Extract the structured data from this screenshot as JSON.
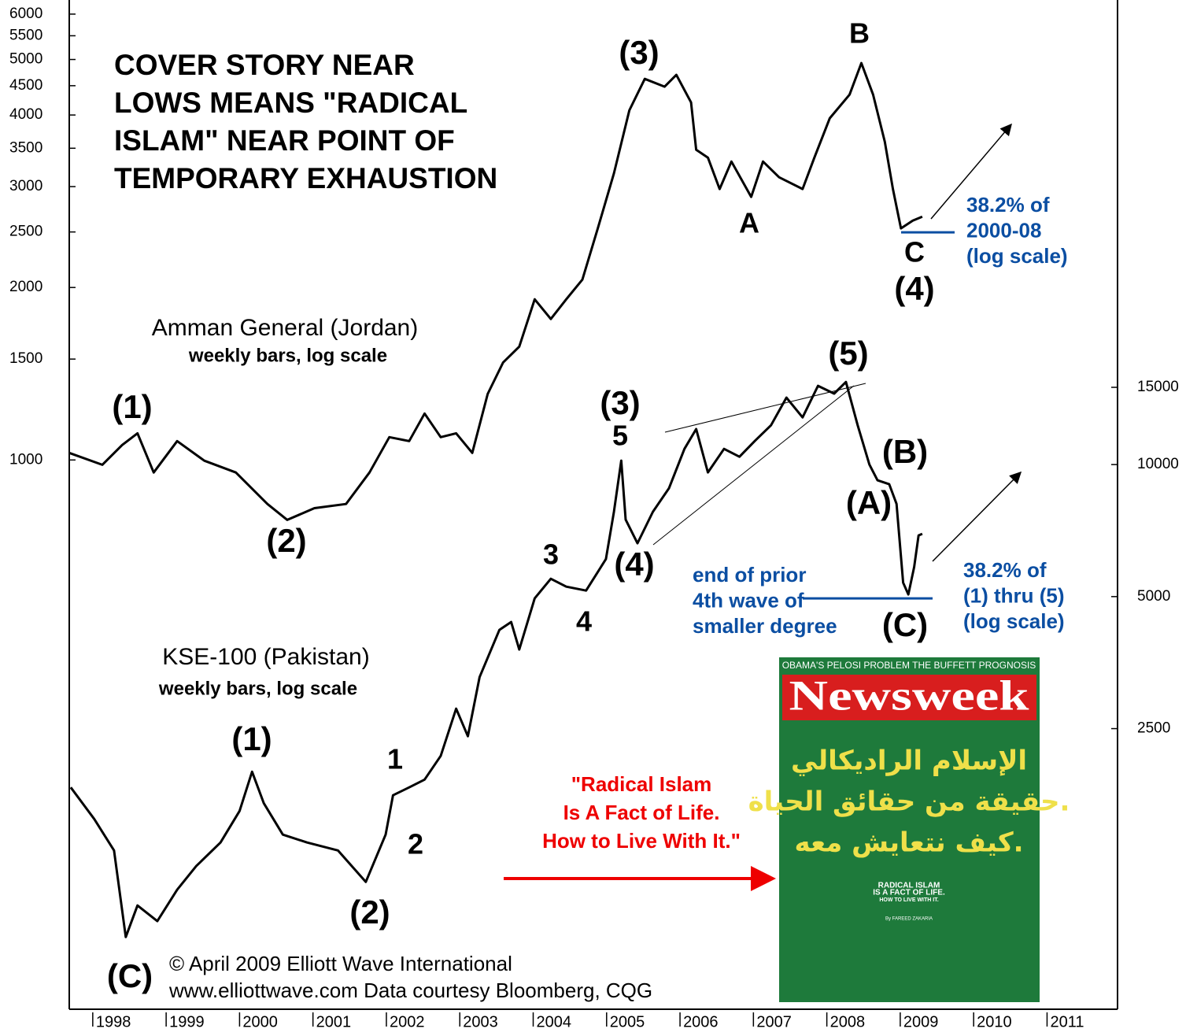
{
  "chart_data": {
    "type": "line",
    "title": [
      "COVER STORY NEAR",
      "LOWS MEANS \"RADICAL",
      "ISLAM\" NEAR POINT OF",
      "TEMPORARY EXHAUSTION"
    ],
    "log_scale": true,
    "xlim": [
      1997.68,
      2011.96
    ],
    "xticks": [
      1998,
      1999,
      2000,
      2001,
      2002,
      2003,
      2004,
      2005,
      2006,
      2007,
      2008,
      2009,
      2010,
      2011
    ],
    "ylim": [
      110,
      6350
    ],
    "yticks": [
      1000,
      1500,
      2000,
      2500,
      3000,
      3500,
      4000,
      4500,
      5000,
      5500,
      6000
    ],
    "y2lim": [
      573,
      114600
    ],
    "y2ticks": [
      2500,
      5000,
      10000,
      15000
    ],
    "series": [
      {
        "name": "Amman General (Jordan)",
        "note": "weekly bars, log scale",
        "color": "#000000",
        "axis": "y",
        "x": [
          1997.68,
          1998.13,
          1998.4,
          1998.61,
          1998.83,
          1999.15,
          1999.52,
          1999.95,
          2000.38,
          2000.65,
          2001.02,
          2001.45,
          2001.77,
          2002.04,
          2002.31,
          2002.52,
          2002.74,
          2002.95,
          2003.17,
          2003.38,
          2003.59,
          2003.81,
          2004.02,
          2004.24,
          2004.45,
          2004.67,
          2004.88,
          2005.1,
          2005.31,
          2005.52,
          2005.79,
          2005.95,
          2006.15,
          2006.22,
          2006.38,
          2006.54,
          2006.7,
          2006.97,
          2007.13,
          2007.35,
          2007.67,
          2007.83,
          2008.04,
          2008.31,
          2008.47,
          2008.63,
          2008.79,
          2008.9,
          2009.01,
          2009.17,
          2009.3
        ],
        "values": [
          1029,
          981,
          1062,
          1113,
          951,
          1079,
          997,
          951,
          838,
          786,
          824,
          838,
          951,
          1096,
          1079,
          1205,
          1096,
          1113,
          1029,
          1304,
          1480,
          1577,
          1907,
          1762,
          1907,
          2064,
          2536,
          3164,
          4076,
          4625,
          4482,
          4700,
          4207,
          3479,
          3371,
          2971,
          3318,
          2878,
          3318,
          3114,
          2971,
          3371,
          3949,
          4342,
          4928,
          4342,
          3592,
          2971,
          2536,
          2617,
          2659
        ]
      },
      {
        "name": "KSE-100 (Pakistan)",
        "note": "weekly bars, log scale",
        "color": "#000000",
        "axis": "y2",
        "x": [
          1997.7,
          1998.02,
          1998.29,
          1998.45,
          1998.61,
          1998.88,
          1999.15,
          1999.41,
          1999.74,
          2000.0,
          2000.17,
          2000.33,
          2000.59,
          2000.92,
          2001.34,
          2001.72,
          2001.99,
          2002.09,
          2002.31,
          2002.52,
          2002.74,
          2002.95,
          2003.11,
          2003.27,
          2003.54,
          2003.7,
          2003.81,
          2004.02,
          2004.24,
          2004.45,
          2004.72,
          2004.99,
          2005.1,
          2005.2,
          2005.26,
          2005.42,
          2005.63,
          2005.85,
          2006.06,
          2006.22,
          2006.38,
          2006.6,
          2006.81,
          2007.02,
          2007.24,
          2007.45,
          2007.67,
          2007.88,
          2008.1,
          2008.26,
          2008.42,
          2008.58,
          2008.69,
          2008.85,
          2008.95,
          2009.04,
          2009.11,
          2009.19,
          2009.25,
          2009.3
        ],
        "values": [
          1836,
          1556,
          1319,
          837,
          988,
          910,
          1073,
          1215,
          1375,
          1622,
          1994,
          1690,
          1433,
          1375,
          1319,
          1118,
          1433,
          1762,
          1836,
          1913,
          2166,
          2776,
          2402,
          3276,
          4198,
          4375,
          3786,
          4953,
          5491,
          5268,
          5160,
          6088,
          7805,
          10210,
          7489,
          6614,
          7805,
          8833,
          10860,
          12050,
          9594,
          10860,
          10420,
          11320,
          12290,
          14210,
          12810,
          15120,
          14510,
          15430,
          12290,
          10000,
          9207,
          9018,
          8133,
          5379,
          5056,
          5841,
          6894,
          6951
        ]
      }
    ],
    "reference_lines": [
      {
        "axis": "y",
        "value": 2496
      },
      {
        "axis": "y2",
        "value": 4953
      }
    ],
    "annotations": [
      "(1)",
      "(2)",
      "(3)",
      "B",
      "A",
      "C",
      "(4)",
      "(1)",
      "(2)",
      "(C)",
      "1",
      "2",
      "3",
      "4",
      "(3)",
      "5",
      "(4)",
      "(5)",
      "(B)",
      "(A)",
      "(C)"
    ],
    "notes": [
      [
        "38.2% of",
        "2000-08",
        "(log scale)"
      ],
      [
        "38.2% of",
        "(1) thru (5)",
        "(log scale)"
      ],
      [
        "end of prior",
        "4th wave of",
        "smaller degree"
      ]
    ],
    "quote": [
      "\"Radical Islam",
      "Is A Fact of Life.",
      "How to Live With It.\""
    ],
    "credits": [
      "© April 2009 Elliott Wave International",
      "www.elliottwave.com  Data courtesy Bloomberg, CQG"
    ],
    "cover": {
      "banner": "OBAMA'S PELOSI PROBLEM   THE BUFFETT PROGNOSIS",
      "masthead": "Newsweek",
      "arabic": [
        "الإسلام الراديكالي",
        "حقيقة من حقائق الحياة.",
        "كيف نتعايش معه."
      ],
      "english": [
        "RADICAL ISLAM",
        "IS A FACT OF LIFE.",
        "HOW TO LIVE WITH IT."
      ],
      "byline": "By FAREED ZAKARIA"
    }
  }
}
